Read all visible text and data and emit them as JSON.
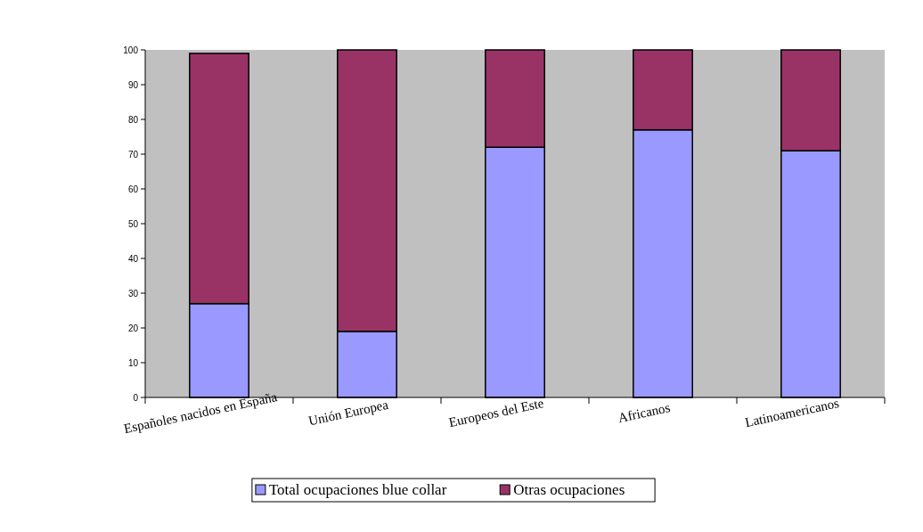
{
  "chart_data": {
    "type": "bar",
    "stacked": true,
    "categories": [
      "Españoles nacidos en España",
      "Unión Europea",
      "Europeos del Este",
      "Africanos",
      "Latinoamericanos"
    ],
    "series": [
      {
        "name": "Total ocupaciones blue collar",
        "color": "#9999ff",
        "values": [
          27,
          19,
          72,
          77,
          71
        ]
      },
      {
        "name": "Otras ocupaciones",
        "color": "#993366",
        "values": [
          72,
          81,
          28,
          23,
          29
        ]
      }
    ],
    "ylim": [
      0,
      100
    ],
    "yticks": [
      0,
      10,
      20,
      30,
      40,
      50,
      60,
      70,
      80,
      90,
      100
    ],
    "grid": false,
    "legend": "bottom"
  }
}
